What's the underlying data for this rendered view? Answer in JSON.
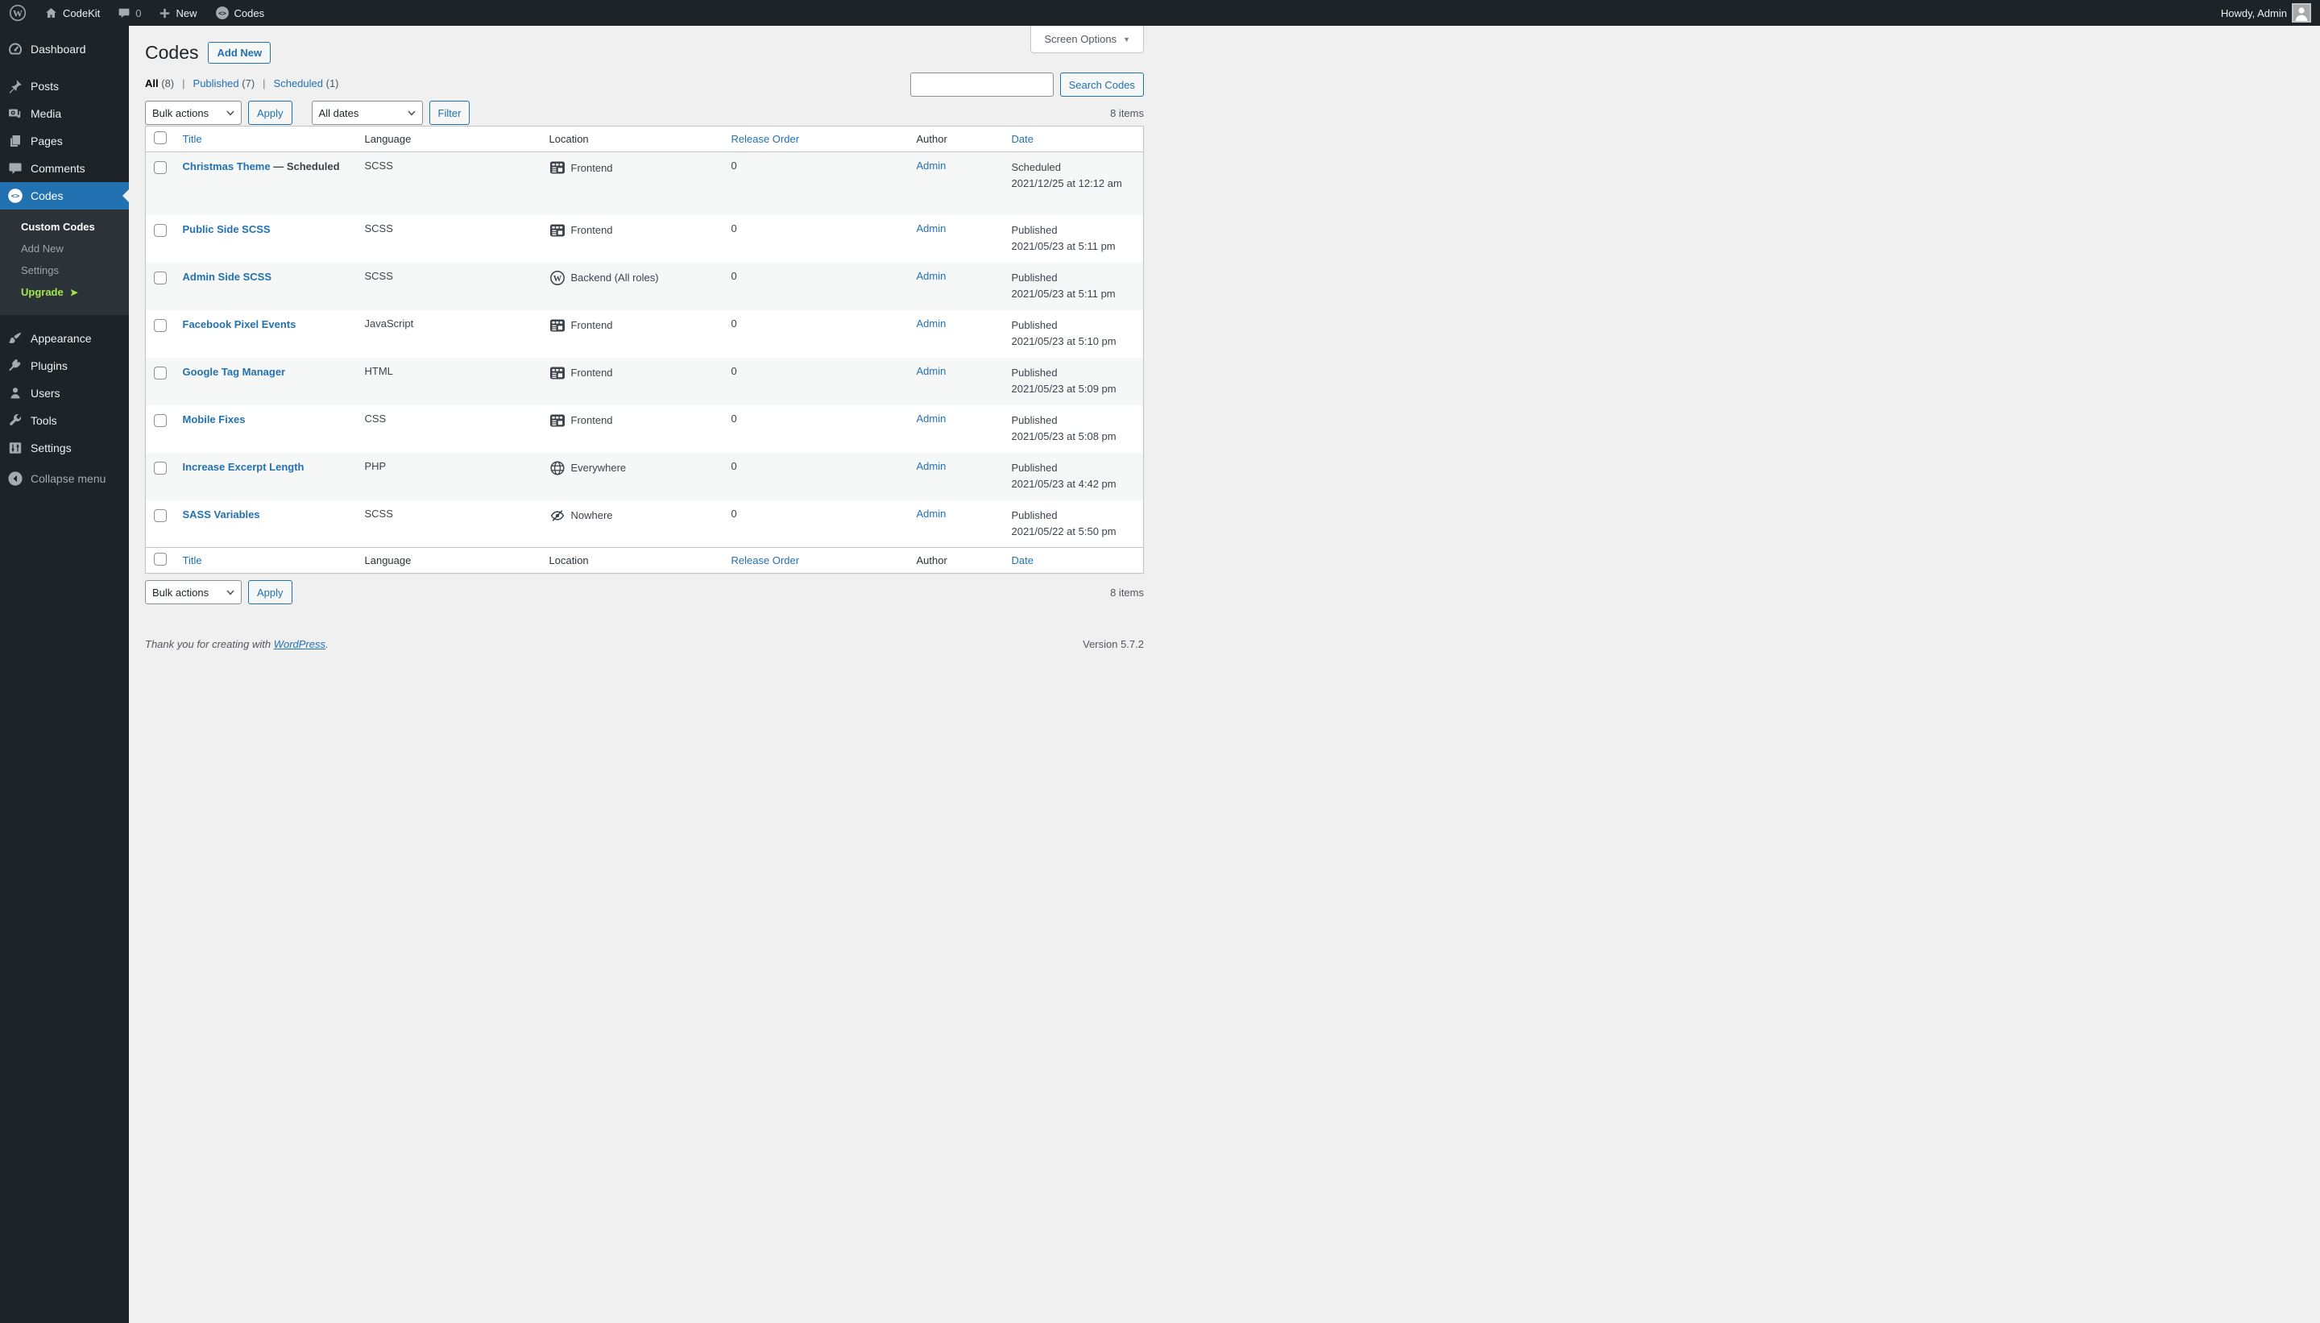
{
  "admin_bar": {
    "site_name": "CodeKit",
    "comment_count": "0",
    "new_label": "New",
    "codes_label": "Codes",
    "howdy": "Howdy, Admin"
  },
  "screen_options": {
    "label": "Screen Options",
    "caret": "▼"
  },
  "sidebar": {
    "items_top": [
      {
        "label": "Dashboard",
        "icon": "dashboard-icon"
      },
      {
        "label": "Posts",
        "icon": "pin-icon"
      },
      {
        "label": "Media",
        "icon": "media-icon"
      },
      {
        "label": "Pages",
        "icon": "pages-icon"
      },
      {
        "label": "Comments",
        "icon": "comments-icon"
      },
      {
        "label": "Codes",
        "icon": "code-icon",
        "active": true
      }
    ],
    "submenu": [
      {
        "label": "Custom Codes",
        "current": true
      },
      {
        "label": "Add New"
      },
      {
        "label": "Settings"
      },
      {
        "label": "Upgrade",
        "highlight": true,
        "arrow": "➤"
      }
    ],
    "items_bottom": [
      {
        "label": "Appearance",
        "icon": "appearance-icon"
      },
      {
        "label": "Plugins",
        "icon": "plugins-icon"
      },
      {
        "label": "Users",
        "icon": "users-icon"
      },
      {
        "label": "Tools",
        "icon": "tools-icon"
      },
      {
        "label": "Settings",
        "icon": "settings-icon"
      },
      {
        "label": "Collapse menu",
        "icon": "collapse-icon"
      }
    ]
  },
  "page": {
    "title": "Codes",
    "add_new_label": "Add New"
  },
  "views": [
    {
      "label": "All",
      "count": "(8)",
      "current": true
    },
    {
      "label": "Published",
      "count": "(7)"
    },
    {
      "label": "Scheduled",
      "count": "(1)"
    }
  ],
  "views_separator": "|",
  "toolbar": {
    "bulk_actions_label": "Bulk actions",
    "apply_label": "Apply",
    "dates_label": "All dates",
    "filter_label": "Filter"
  },
  "search": {
    "input_value": "",
    "button_label": "Search Codes"
  },
  "items_count": "8 items",
  "table": {
    "state_prefix": " — ",
    "headers": {
      "title": "Title",
      "language": "Language",
      "location": "Location",
      "release_order": "Release Order",
      "author": "Author",
      "date": "Date"
    },
    "rows": [
      {
        "title": "Christmas Theme",
        "state": "Scheduled",
        "language": "SCSS",
        "location": "Frontend",
        "location_icon": "frontend-icon",
        "release_order": "0",
        "author": "Admin",
        "date_status": "Scheduled",
        "date_text": "2021/12/25 at 12:12 am",
        "striped": true
      },
      {
        "title": "Public Side SCSS",
        "language": "SCSS",
        "location": "Frontend",
        "location_icon": "frontend-icon",
        "release_order": "0",
        "author": "Admin",
        "date_status": "Published",
        "date_text": "2021/05/23 at 5:11 pm",
        "striped": false
      },
      {
        "title": "Admin Side SCSS",
        "language": "SCSS",
        "location": "Backend (All roles)",
        "location_icon": "wordpress-icon",
        "release_order": "0",
        "author": "Admin",
        "date_status": "Published",
        "date_text": "2021/05/23 at 5:11 pm",
        "striped": true
      },
      {
        "title": "Facebook Pixel Events",
        "language": "JavaScript",
        "location": "Frontend",
        "location_icon": "frontend-icon",
        "release_order": "0",
        "author": "Admin",
        "date_status": "Published",
        "date_text": "2021/05/23 at 5:10 pm",
        "striped": false
      },
      {
        "title": "Google Tag Manager",
        "language": "HTML",
        "location": "Frontend",
        "location_icon": "frontend-icon",
        "release_order": "0",
        "author": "Admin",
        "date_status": "Published",
        "date_text": "2021/05/23 at 5:09 pm",
        "striped": true
      },
      {
        "title": "Mobile Fixes",
        "language": "CSS",
        "location": "Frontend",
        "location_icon": "frontend-icon",
        "release_order": "0",
        "author": "Admin",
        "date_status": "Published",
        "date_text": "2021/05/23 at 5:08 pm",
        "striped": false
      },
      {
        "title": "Increase Excerpt Length",
        "language": "PHP",
        "location": "Everywhere",
        "location_icon": "globe-icon",
        "release_order": "0",
        "author": "Admin",
        "date_status": "Published",
        "date_text": "2021/05/23 at 4:42 pm",
        "striped": true
      },
      {
        "title": "SASS Variables",
        "language": "SCSS",
        "location": "Nowhere",
        "location_icon": "hidden-icon",
        "release_order": "0",
        "author": "Admin",
        "date_status": "Published",
        "date_text": "2021/05/22 at 5:50 pm",
        "striped": false
      }
    ]
  },
  "footer": {
    "thanks_prefix": "Thank you for creating with ",
    "wordpress_link": "WordPress",
    "thanks_suffix": ".",
    "version": "Version 5.7.2"
  },
  "colors": {
    "accent_blue": "#2271b1",
    "sidebar_bg": "#1d2327",
    "submenu_bg": "#2c3338",
    "upgrade_green": "#a2e64b",
    "page_bg": "#f0f0f1",
    "stripe": "#f6f7f7",
    "border": "#c3c4c7"
  }
}
